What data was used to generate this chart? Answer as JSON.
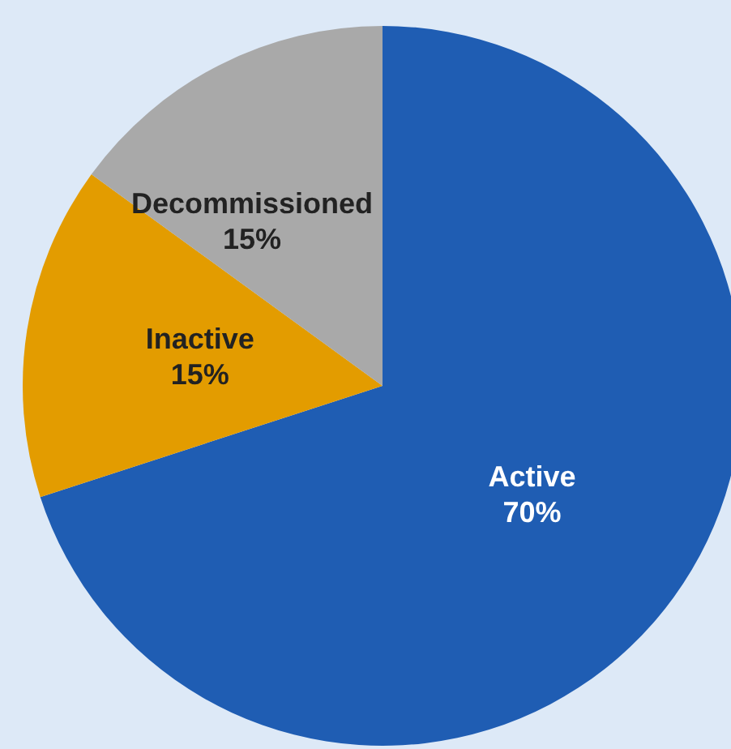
{
  "chart_data": {
    "type": "pie",
    "categories": [
      "Active",
      "Inactive",
      "Decommissioned"
    ],
    "values": [
      70,
      15,
      15
    ],
    "value_labels": [
      "70%",
      "15%",
      "15%"
    ],
    "colors": [
      "#1f5db3",
      "#e39c00",
      "#a9a9a9"
    ],
    "legend": false
  }
}
